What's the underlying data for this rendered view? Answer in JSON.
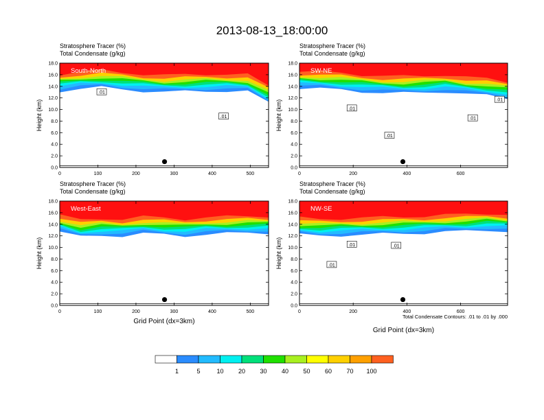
{
  "title": "2013-08-13_18:00:00",
  "colors": {
    "scale": [
      "#ffffff",
      "#2a8cff",
      "#22bbff",
      "#00f0f0",
      "#00e07a",
      "#20e000",
      "#a8f020",
      "#ffff00",
      "#ffd000",
      "#ffa000",
      "#ff6020",
      "#ff1010"
    ],
    "frame": "#000000"
  },
  "colorbar": {
    "labels": [
      "1",
      "5",
      "10",
      "20",
      "30",
      "40",
      "50",
      "60",
      "70",
      "100"
    ]
  },
  "contour_note": "Total Condensate Contours: .01 to .01 by .000",
  "chart_data": [
    {
      "type": "heatmap",
      "title": "Stratosphere Tracer   (%)",
      "subtitle": "Total Condensate   (g/kg)",
      "region_label": "South-North",
      "xlabel": "",
      "ylabel": "Height (km)",
      "xlim": [
        0,
        548
      ],
      "ylim": [
        0,
        18
      ],
      "xticks": [
        "0",
        "100",
        "200",
        "300",
        "400",
        "500"
      ],
      "xtick_values": [
        0,
        100,
        200,
        300,
        400,
        500
      ],
      "yticks": [
        "0.0",
        "2.0",
        "4.0",
        "6.0",
        "8.0",
        "10.0",
        "12.0",
        "14.0",
        "16.0",
        "18.0"
      ],
      "contour_labels": [
        {
          "text": ".01",
          "x": 110,
          "y": 13.0
        },
        {
          "text": ".01",
          "x": 430,
          "y": 8.8
        }
      ],
      "marker": {
        "x": 275,
        "y": 1.0
      },
      "tropopause_km": [
        14.0,
        14.4,
        14.6,
        14.3,
        14.0,
        13.8,
        13.9,
        14.0,
        14.0,
        13.9,
        12.0
      ]
    },
    {
      "type": "heatmap",
      "title": "Stratosphere Tracer   (%)",
      "subtitle": "Total Condensate   (g/kg)",
      "region_label": "SW-NE",
      "xlabel": "",
      "ylabel": "Height (km)",
      "xlim": [
        0,
        775
      ],
      "ylim": [
        0,
        18
      ],
      "xticks": [
        "0",
        "200",
        "400",
        "600"
      ],
      "xtick_values": [
        0,
        200,
        400,
        600
      ],
      "yticks": [
        "0.0",
        "2.0",
        "4.0",
        "6.0",
        "8.0",
        "10.0",
        "12.0",
        "14.0",
        "16.0",
        "18.0"
      ],
      "contour_labels": [
        {
          "text": ".01",
          "x": 195,
          "y": 10.2
        },
        {
          "text": ".01",
          "x": 335,
          "y": 5.5
        },
        {
          "text": ".01",
          "x": 645,
          "y": 8.5
        },
        {
          "text": ".01",
          "x": 745,
          "y": 11.7
        }
      ],
      "marker": {
        "x": 385,
        "y": 1.0
      },
      "tropopause_km": [
        14.5,
        14.4,
        14.2,
        13.9,
        13.7,
        13.6,
        13.7,
        13.9,
        13.5,
        13.2,
        12.7
      ]
    },
    {
      "type": "heatmap",
      "title": "Stratosphere Tracer   (%)",
      "subtitle": "Total Condensate   (g/kg)",
      "region_label": "West-East",
      "xlabel": "Grid Point (dx=3km)",
      "ylabel": "Height (km)",
      "xlim": [
        0,
        548
      ],
      "ylim": [
        0,
        18
      ],
      "xticks": [
        "0",
        "100",
        "200",
        "300",
        "400",
        "500"
      ],
      "xtick_values": [
        0,
        100,
        200,
        300,
        400,
        500
      ],
      "yticks": [
        "0.0",
        "2.0",
        "4.0",
        "6.0",
        "8.0",
        "10.0",
        "12.0",
        "14.0",
        "16.0",
        "18.0"
      ],
      "contour_labels": [],
      "marker": {
        "x": 275,
        "y": 1.0
      },
      "tropopause_km": [
        13.5,
        12.6,
        12.9,
        12.8,
        13.2,
        13.0,
        12.8,
        13.1,
        13.2,
        13.3,
        13.3
      ]
    },
    {
      "type": "heatmap",
      "title": "Stratosphere Tracer   (%)",
      "subtitle": "Total Condensate   (g/kg)",
      "region_label": "NW-SE",
      "xlabel": "Grid Point (dx=3km)",
      "ylabel": "Height (km)",
      "xlim": [
        0,
        775
      ],
      "ylim": [
        0,
        18
      ],
      "xticks": [
        "0",
        "200",
        "400",
        "600"
      ],
      "xtick_values": [
        0,
        200,
        400,
        600
      ],
      "yticks": [
        "0.0",
        "2.0",
        "4.0",
        "6.0",
        "8.0",
        "10.0",
        "12.0",
        "14.0",
        "16.0",
        "18.0"
      ],
      "contour_labels": [
        {
          "text": ".01",
          "x": 195,
          "y": 10.5
        },
        {
          "text": ".01",
          "x": 120,
          "y": 7.0
        },
        {
          "text": ".01",
          "x": 360,
          "y": 10.3
        }
      ],
      "marker": {
        "x": 385,
        "y": 1.0
      },
      "tropopause_km": [
        13.0,
        12.8,
        12.9,
        13.0,
        13.1,
        13.2,
        13.3,
        13.5,
        13.6,
        13.8,
        13.6
      ]
    }
  ]
}
